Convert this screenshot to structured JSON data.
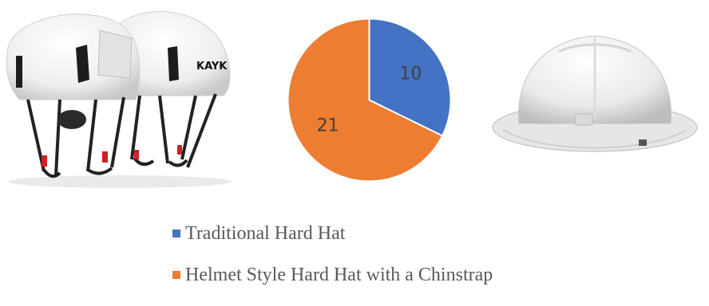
{
  "chart_data": {
    "type": "pie",
    "series": [
      {
        "name": "Traditional Hard Hat",
        "value": 10,
        "color": "#4472C4"
      },
      {
        "name": "Helmet Style Hard Hat with a Chinstrap",
        "value": 21,
        "color": "#ED7D31"
      }
    ],
    "legend_position": "bottom"
  },
  "images": {
    "left": {
      "name": "helmet-with-chinstrap-photo",
      "logo_text": "KAYK"
    },
    "right": {
      "name": "traditional-hard-hat-photo"
    }
  }
}
